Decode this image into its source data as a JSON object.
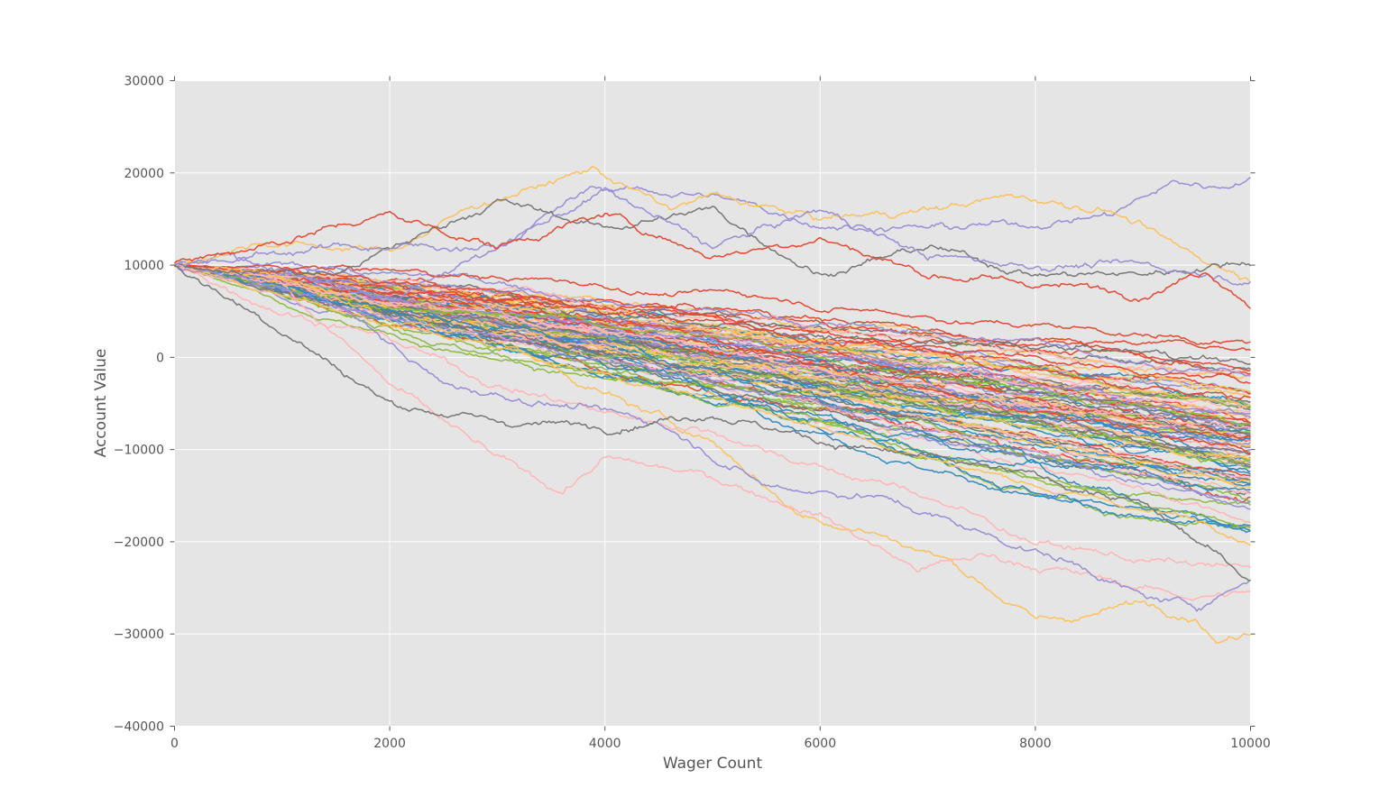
{
  "chart_data": {
    "type": "line",
    "title": "",
    "xlabel": "Wager Count",
    "ylabel": "Account Value",
    "xlim": [
      0,
      10000
    ],
    "ylim": [
      -40000,
      30000
    ],
    "xticks": [
      0,
      2000,
      4000,
      6000,
      8000,
      10000
    ],
    "xtick_labels": [
      "0",
      "2000",
      "4000",
      "6000",
      "8000",
      "10000"
    ],
    "yticks": [
      -40000,
      -30000,
      -20000,
      -10000,
      0,
      10000,
      20000,
      30000
    ],
    "ytick_labels": [
      "−40000",
      "−30000",
      "−20000",
      "−10000",
      "0",
      "10000",
      "20000",
      "30000"
    ],
    "grid": true,
    "legend": "none",
    "background_color": "#e5e5e5",
    "grid_color": "#ffffff",
    "color_cycle": [
      "#e24a33",
      "#348abd",
      "#988ed5",
      "#777777",
      "#fbc15e",
      "#8eba42",
      "#ffb5b8"
    ],
    "num_series": 100,
    "x_step": 20,
    "start_value": 10000,
    "series": [
      {
        "color": "#988ed5",
        "waypoints": [
          [
            0,
            10000
          ],
          [
            500,
            11500
          ],
          [
            1000,
            9500
          ],
          [
            2000,
            6000
          ],
          [
            3000,
            12000
          ],
          [
            3900,
            18500
          ],
          [
            5000,
            17500
          ],
          [
            6000,
            14500
          ],
          [
            7000,
            14000
          ],
          [
            8000,
            14500
          ],
          [
            8700,
            15500
          ],
          [
            9300,
            19000
          ],
          [
            9700,
            18500
          ],
          [
            10000,
            19500
          ]
        ]
      },
      {
        "color": "#fbc15e",
        "waypoints": [
          [
            0,
            10000
          ],
          [
            800,
            12500
          ],
          [
            2000,
            11500
          ],
          [
            2800,
            16500
          ],
          [
            3500,
            19000
          ],
          [
            3900,
            20500
          ],
          [
            4600,
            16000
          ],
          [
            5000,
            17500
          ],
          [
            6000,
            15000
          ],
          [
            7000,
            16000
          ],
          [
            7800,
            17500
          ],
          [
            8700,
            16000
          ],
          [
            9300,
            12000
          ],
          [
            10000,
            8500
          ]
        ]
      },
      {
        "color": "#fbc15e",
        "waypoints": [
          [
            0,
            10000
          ],
          [
            1000,
            9000
          ],
          [
            2000,
            4000
          ],
          [
            3000,
            2000
          ],
          [
            4000,
            -4000
          ],
          [
            5000,
            -9000
          ],
          [
            5800,
            -17000
          ],
          [
            6500,
            -19000
          ],
          [
            7200,
            -22000
          ],
          [
            8000,
            -28500
          ],
          [
            8500,
            -28000
          ],
          [
            9000,
            -26500
          ],
          [
            9500,
            -28000
          ],
          [
            9700,
            -31000
          ],
          [
            10000,
            -29500
          ]
        ]
      },
      {
        "color": "#ffb5b8",
        "waypoints": [
          [
            0,
            10000
          ],
          [
            1000,
            8000
          ],
          [
            2000,
            -3000
          ],
          [
            2500,
            -7000
          ],
          [
            3000,
            -11000
          ],
          [
            3600,
            -14500
          ],
          [
            4000,
            -11000
          ],
          [
            5000,
            -13000
          ],
          [
            6000,
            -17000
          ],
          [
            6900,
            -23000
          ],
          [
            7500,
            -21500
          ],
          [
            8200,
            -23000
          ],
          [
            9000,
            -25000
          ],
          [
            9500,
            -26000
          ],
          [
            10000,
            -25500
          ]
        ]
      },
      {
        "color": "#ffb5b8",
        "waypoints": [
          [
            0,
            10000
          ],
          [
            1000,
            5000
          ],
          [
            2000,
            2000
          ],
          [
            3000,
            -3000
          ],
          [
            4000,
            -6000
          ],
          [
            5000,
            -8000
          ],
          [
            6000,
            -12000
          ],
          [
            7000,
            -15000
          ],
          [
            8000,
            -20000
          ],
          [
            9000,
            -22000
          ],
          [
            10000,
            -23000
          ]
        ]
      },
      {
        "color": "#988ed5",
        "waypoints": [
          [
            0,
            10000
          ],
          [
            1500,
            6000
          ],
          [
            2500,
            -3000
          ],
          [
            3500,
            -5000
          ],
          [
            4500,
            -7000
          ],
          [
            5500,
            -14000
          ],
          [
            6500,
            -15000
          ],
          [
            7500,
            -19000
          ],
          [
            8500,
            -23000
          ],
          [
            9000,
            -26000
          ],
          [
            9500,
            -27000
          ],
          [
            10000,
            -24000
          ]
        ]
      },
      {
        "color": "#777777",
        "waypoints": [
          [
            0,
            10000
          ],
          [
            1000,
            3000
          ],
          [
            2000,
            -5000
          ],
          [
            3000,
            -7000
          ],
          [
            4000,
            -7500
          ],
          [
            5000,
            -6000
          ],
          [
            6000,
            -9000
          ],
          [
            7000,
            -11000
          ],
          [
            8000,
            -13000
          ],
          [
            9000,
            -16000
          ],
          [
            9500,
            -20000
          ],
          [
            10000,
            -24000
          ]
        ]
      },
      {
        "color": "#777777",
        "waypoints": [
          [
            0,
            10000
          ],
          [
            1500,
            9000
          ],
          [
            3000,
            17000
          ],
          [
            4000,
            14000
          ],
          [
            5000,
            16000
          ],
          [
            6000,
            9000
          ],
          [
            7000,
            12000
          ],
          [
            8000,
            9000
          ],
          [
            9000,
            9000
          ],
          [
            10000,
            10500
          ]
        ]
      },
      {
        "color": "#988ed5",
        "waypoints": [
          [
            0,
            10000
          ],
          [
            1500,
            12000
          ],
          [
            3000,
            12000
          ],
          [
            4000,
            18000
          ],
          [
            5000,
            12000
          ],
          [
            6000,
            16000
          ],
          [
            7000,
            11000
          ],
          [
            8000,
            10000
          ],
          [
            9000,
            10000
          ],
          [
            10000,
            8500
          ]
        ]
      },
      {
        "color": "#e24a33",
        "waypoints": [
          [
            0,
            10000
          ],
          [
            2000,
            15500
          ],
          [
            3000,
            12000
          ],
          [
            4000,
            15500
          ],
          [
            5000,
            11000
          ],
          [
            6000,
            13000
          ],
          [
            7000,
            9000
          ],
          [
            8000,
            8000
          ],
          [
            9000,
            7000
          ],
          [
            9600,
            9500
          ],
          [
            10000,
            6000
          ]
        ]
      }
    ]
  }
}
